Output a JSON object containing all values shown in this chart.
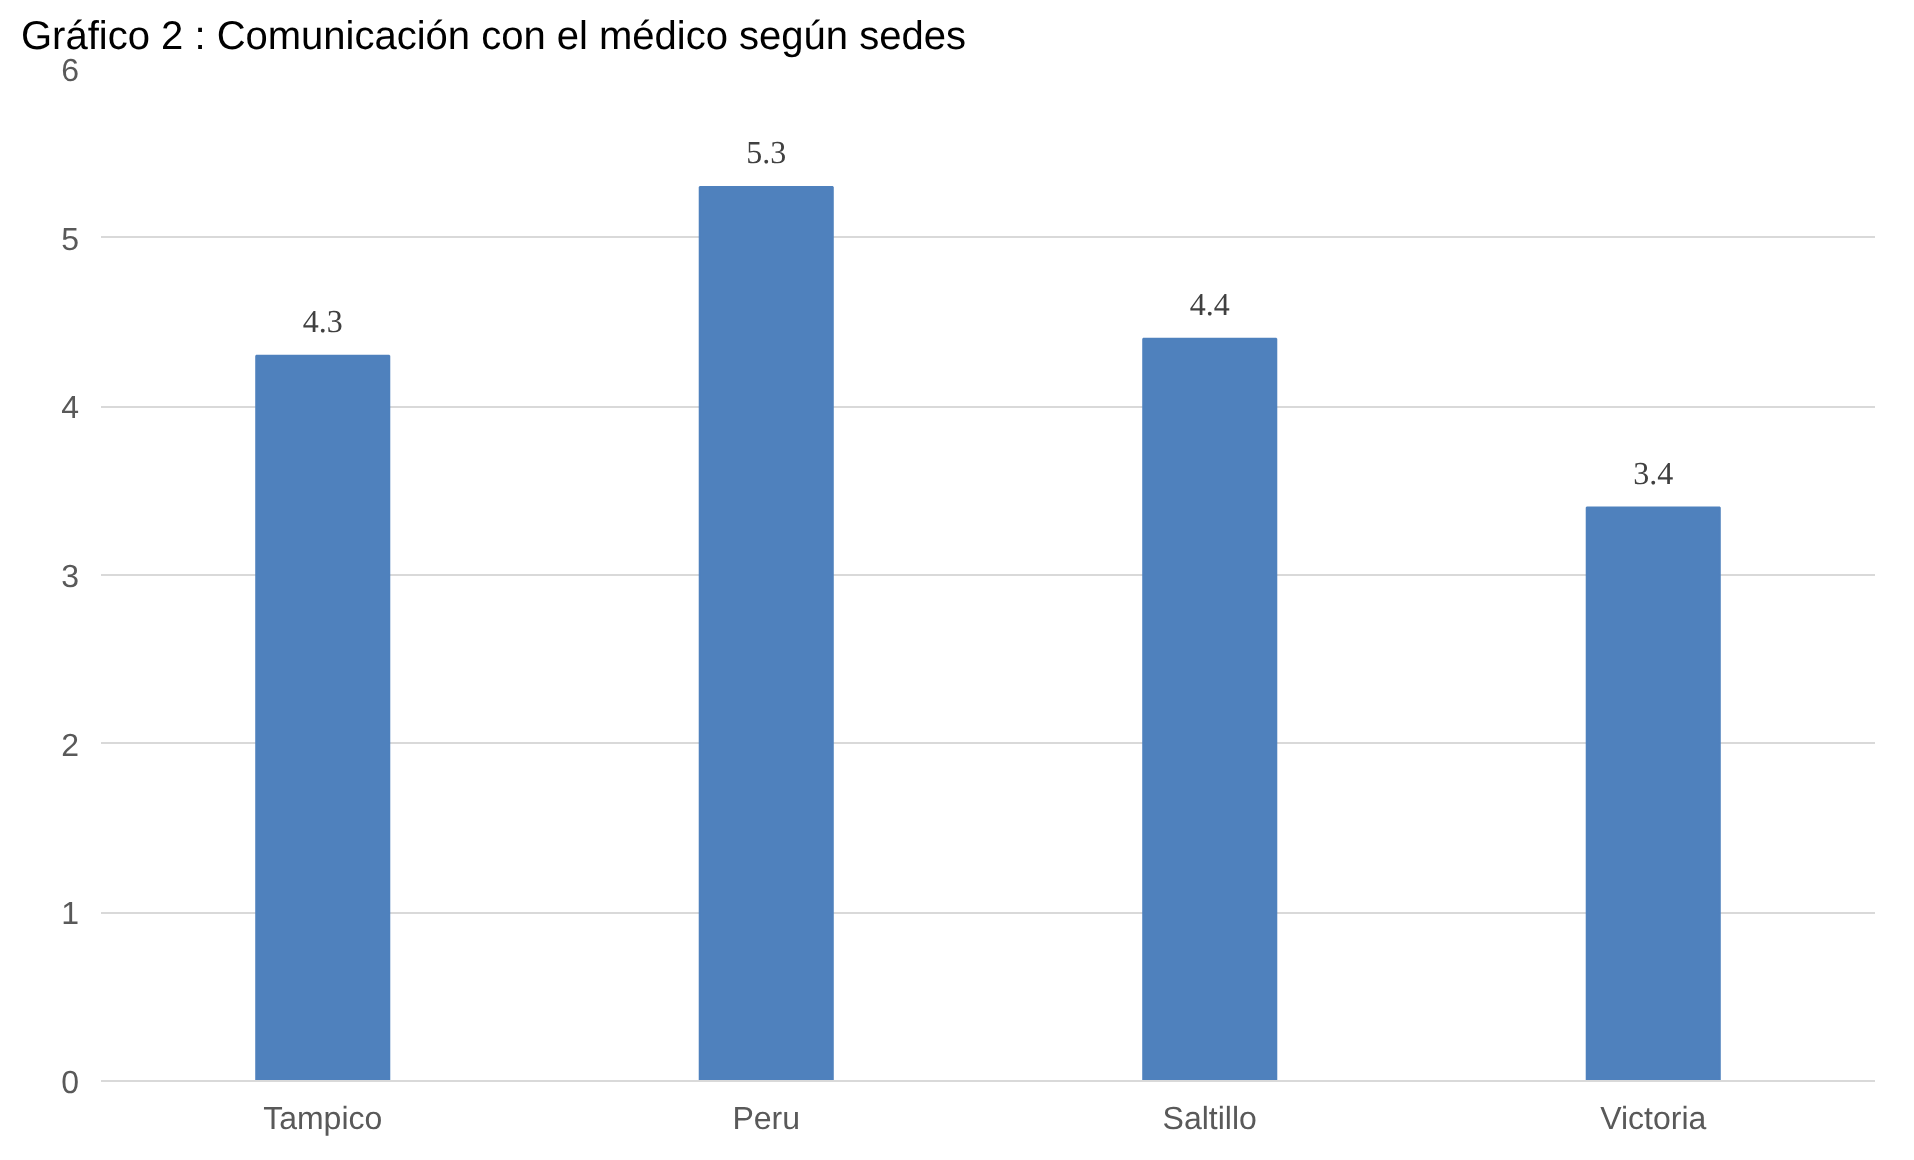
{
  "chart_data": {
    "type": "bar",
    "title": "Gráfico 2 : Comunicación con el médico según sedes",
    "categories": [
      "Tampico",
      "Peru",
      "Saltillo",
      "Victoria"
    ],
    "values": [
      4.3,
      5.3,
      4.4,
      3.4
    ],
    "color": "#4f81bd",
    "ylim": [
      0,
      6
    ],
    "yticks": [
      0,
      1,
      2,
      3,
      4,
      5,
      6
    ],
    "grid": "y",
    "data_labels": true
  }
}
